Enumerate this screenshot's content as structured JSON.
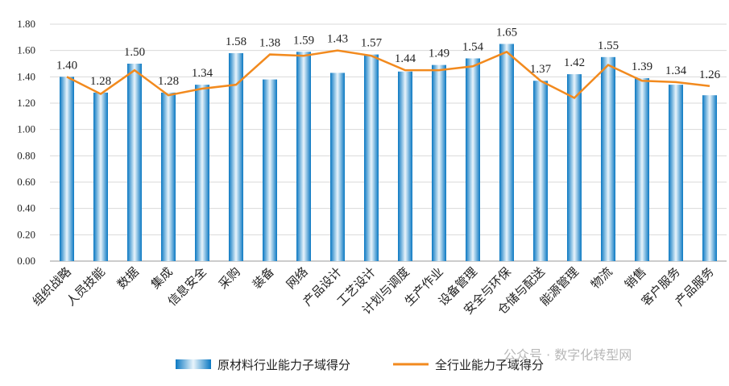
{
  "chart_data": {
    "type": "bar",
    "categories": [
      "组织战略",
      "人员技能",
      "数据",
      "集成",
      "信息安全",
      "采购",
      "装备",
      "网络",
      "产品设计",
      "工艺设计",
      "计划与调度",
      "生产作业",
      "设备管理",
      "安全与环保",
      "仓储与配送",
      "能源管理",
      "物流",
      "销售",
      "客户服务",
      "产品服务"
    ],
    "series": [
      {
        "name": "原材料行业能力子域得分",
        "type": "bar",
        "values": [
          1.4,
          1.28,
          1.5,
          1.28,
          1.34,
          1.58,
          1.38,
          1.59,
          1.43,
          1.57,
          1.44,
          1.49,
          1.54,
          1.65,
          1.37,
          1.42,
          1.55,
          1.39,
          1.34,
          1.26
        ]
      },
      {
        "name": "全行业能力子域得分",
        "type": "line",
        "values": [
          1.4,
          1.27,
          1.45,
          1.26,
          1.31,
          1.34,
          1.57,
          1.56,
          1.6,
          1.56,
          1.45,
          1.45,
          1.48,
          1.59,
          1.37,
          1.24,
          1.49,
          1.37,
          1.36,
          1.33
        ]
      }
    ],
    "ylim": [
      0,
      1.8
    ],
    "yticks": [
      "0.00",
      "0.20",
      "0.40",
      "0.60",
      "0.80",
      "1.00",
      "1.20",
      "1.40",
      "1.60",
      "1.80"
    ],
    "grid": true,
    "legend": "bottom",
    "colors": {
      "bar": "#1a8ad0",
      "line": "#f28a1e"
    },
    "title": "",
    "xlabel": "",
    "ylabel": ""
  },
  "watermark": "公众号 · 数字化转型网"
}
